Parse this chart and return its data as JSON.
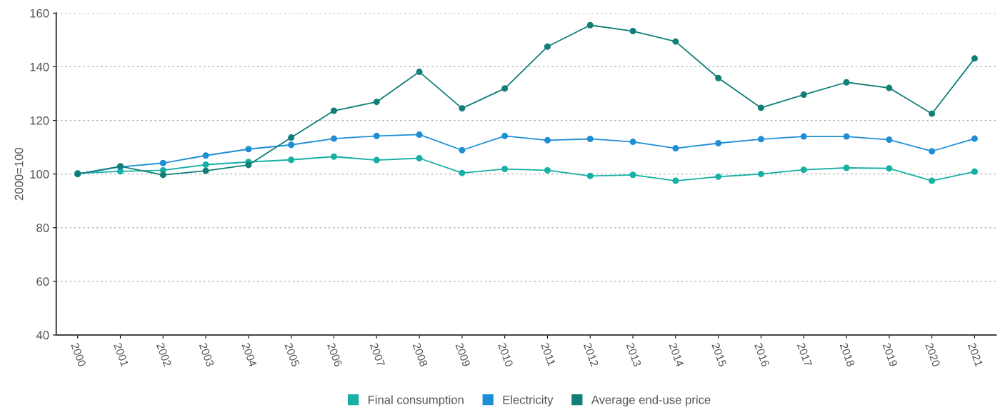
{
  "chart_data": {
    "type": "line",
    "ylabel": "2000=100",
    "categories": [
      "2000",
      "2001",
      "2002",
      "2003",
      "2004",
      "2005",
      "2006",
      "2007",
      "2008",
      "2009",
      "2010",
      "2011",
      "2012",
      "2013",
      "2014",
      "2015",
      "2016",
      "2017",
      "2018",
      "2019",
      "2020",
      "2021"
    ],
    "series": [
      {
        "name": "Final consumption",
        "color": "#17b0a4",
        "values": [
          100.3,
          101,
          101.4,
          103.5,
          104.5,
          105.3,
          106.5,
          105.2,
          105.9,
          100.4,
          101.9,
          101.4,
          99.3,
          99.7,
          97.5,
          99,
          100,
          101.6,
          102.3,
          102.1,
          97.5,
          100.9
        ]
      },
      {
        "name": "Electricity",
        "color": "#1e8fd5",
        "values": [
          100,
          102.7,
          104.1,
          106.9,
          109.3,
          110.9,
          113.2,
          114.2,
          114.7,
          108.9,
          114.2,
          112.6,
          113.1,
          112,
          109.6,
          111.5,
          113,
          114,
          114,
          112.8,
          108.5,
          113.2
        ]
      },
      {
        "name": "Average end-use price",
        "color": "#117f78",
        "values": [
          100,
          102.9,
          99.7,
          101.2,
          103.4,
          113.6,
          123.6,
          126.9,
          138.1,
          124.5,
          131.9,
          147.5,
          155.5,
          153.3,
          149.4,
          135.8,
          124.7,
          129.6,
          134.2,
          132.1,
          122.5,
          143.1
        ]
      }
    ],
    "ylim": [
      40,
      160
    ],
    "yticks": [
      40,
      60,
      80,
      100,
      120,
      140,
      160
    ],
    "grid": "y",
    "legend": "bottom",
    "marker": "circle",
    "line_style": "solid"
  }
}
